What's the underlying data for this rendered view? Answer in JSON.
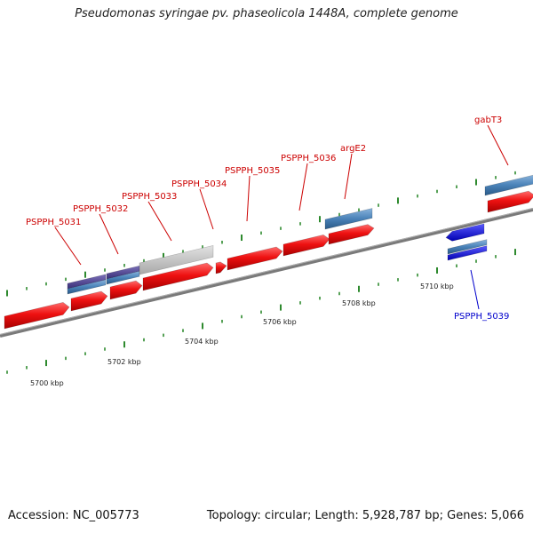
{
  "title": "Pseudomonas syringae pv. phaseolicola 1448A, complete genome",
  "footer": {
    "accession": "Accession: NC_005773",
    "stats": "Topology: circular; Length: 5,928,787 bp; Genes: 5,066"
  },
  "colors": {
    "forward_gene": "#ee1111",
    "reverse_gene": "#1111ee",
    "blue_feature": "#4a82b8",
    "purple_feature": "#4a3f8f",
    "gray_feature": "#c4c4c4",
    "axis": "#808080",
    "tick": "#2e8a2e",
    "forward_label": "#cc0000",
    "reverse_label": "#0000cc"
  },
  "scale_labels": [
    "5700 kbp",
    "5702 kbp",
    "5704 kbp",
    "5706 kbp",
    "5708 kbp",
    "5710 kbp"
  ],
  "gene_labels": [
    {
      "text": "PSPPH_5031",
      "strand": "forward"
    },
    {
      "text": "PSPPH_5032",
      "strand": "forward"
    },
    {
      "text": "PSPPH_5033",
      "strand": "forward"
    },
    {
      "text": "PSPPH_5034",
      "strand": "forward"
    },
    {
      "text": "PSPPH_5035",
      "strand": "forward"
    },
    {
      "text": "PSPPH_5036",
      "strand": "forward"
    },
    {
      "text": "argE2",
      "strand": "forward"
    },
    {
      "text": "gabT3",
      "strand": "forward"
    },
    {
      "text": "PSPPH_5039",
      "strand": "reverse"
    }
  ]
}
